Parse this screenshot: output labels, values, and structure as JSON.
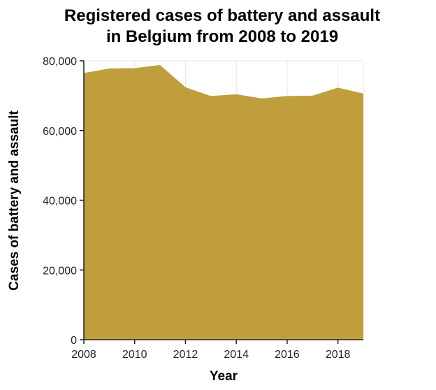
{
  "chart_data": {
    "type": "area",
    "title": [
      "Registered cases of battery and assault",
      "in Belgium from 2008 to 2019"
    ],
    "xlabel": "Year",
    "ylabel": "Cases of battery and assault",
    "x": [
      2008,
      2009,
      2010,
      2011,
      2012,
      2013,
      2014,
      2015,
      2016,
      2017,
      2018,
      2019
    ],
    "values": [
      76500,
      77800,
      77900,
      78800,
      72400,
      69900,
      70400,
      69200,
      69900,
      70000,
      72300,
      70600
    ],
    "xlim": [
      2008,
      2019
    ],
    "ylim": [
      0,
      80000
    ],
    "yticks": [
      0,
      20000,
      40000,
      60000,
      80000
    ],
    "ytick_labels": [
      "0",
      "20,000",
      "40,000",
      "60,000",
      "80,000"
    ],
    "xticks": [
      2008,
      2010,
      2012,
      2014,
      2016,
      2018
    ],
    "xtick_labels": [
      "2008",
      "2010",
      "2012",
      "2014",
      "2016",
      "2018"
    ],
    "grid": true,
    "colors": {
      "fill": "#bf9e3b",
      "grid": "#e6e6e6",
      "axis": "#222222"
    }
  }
}
